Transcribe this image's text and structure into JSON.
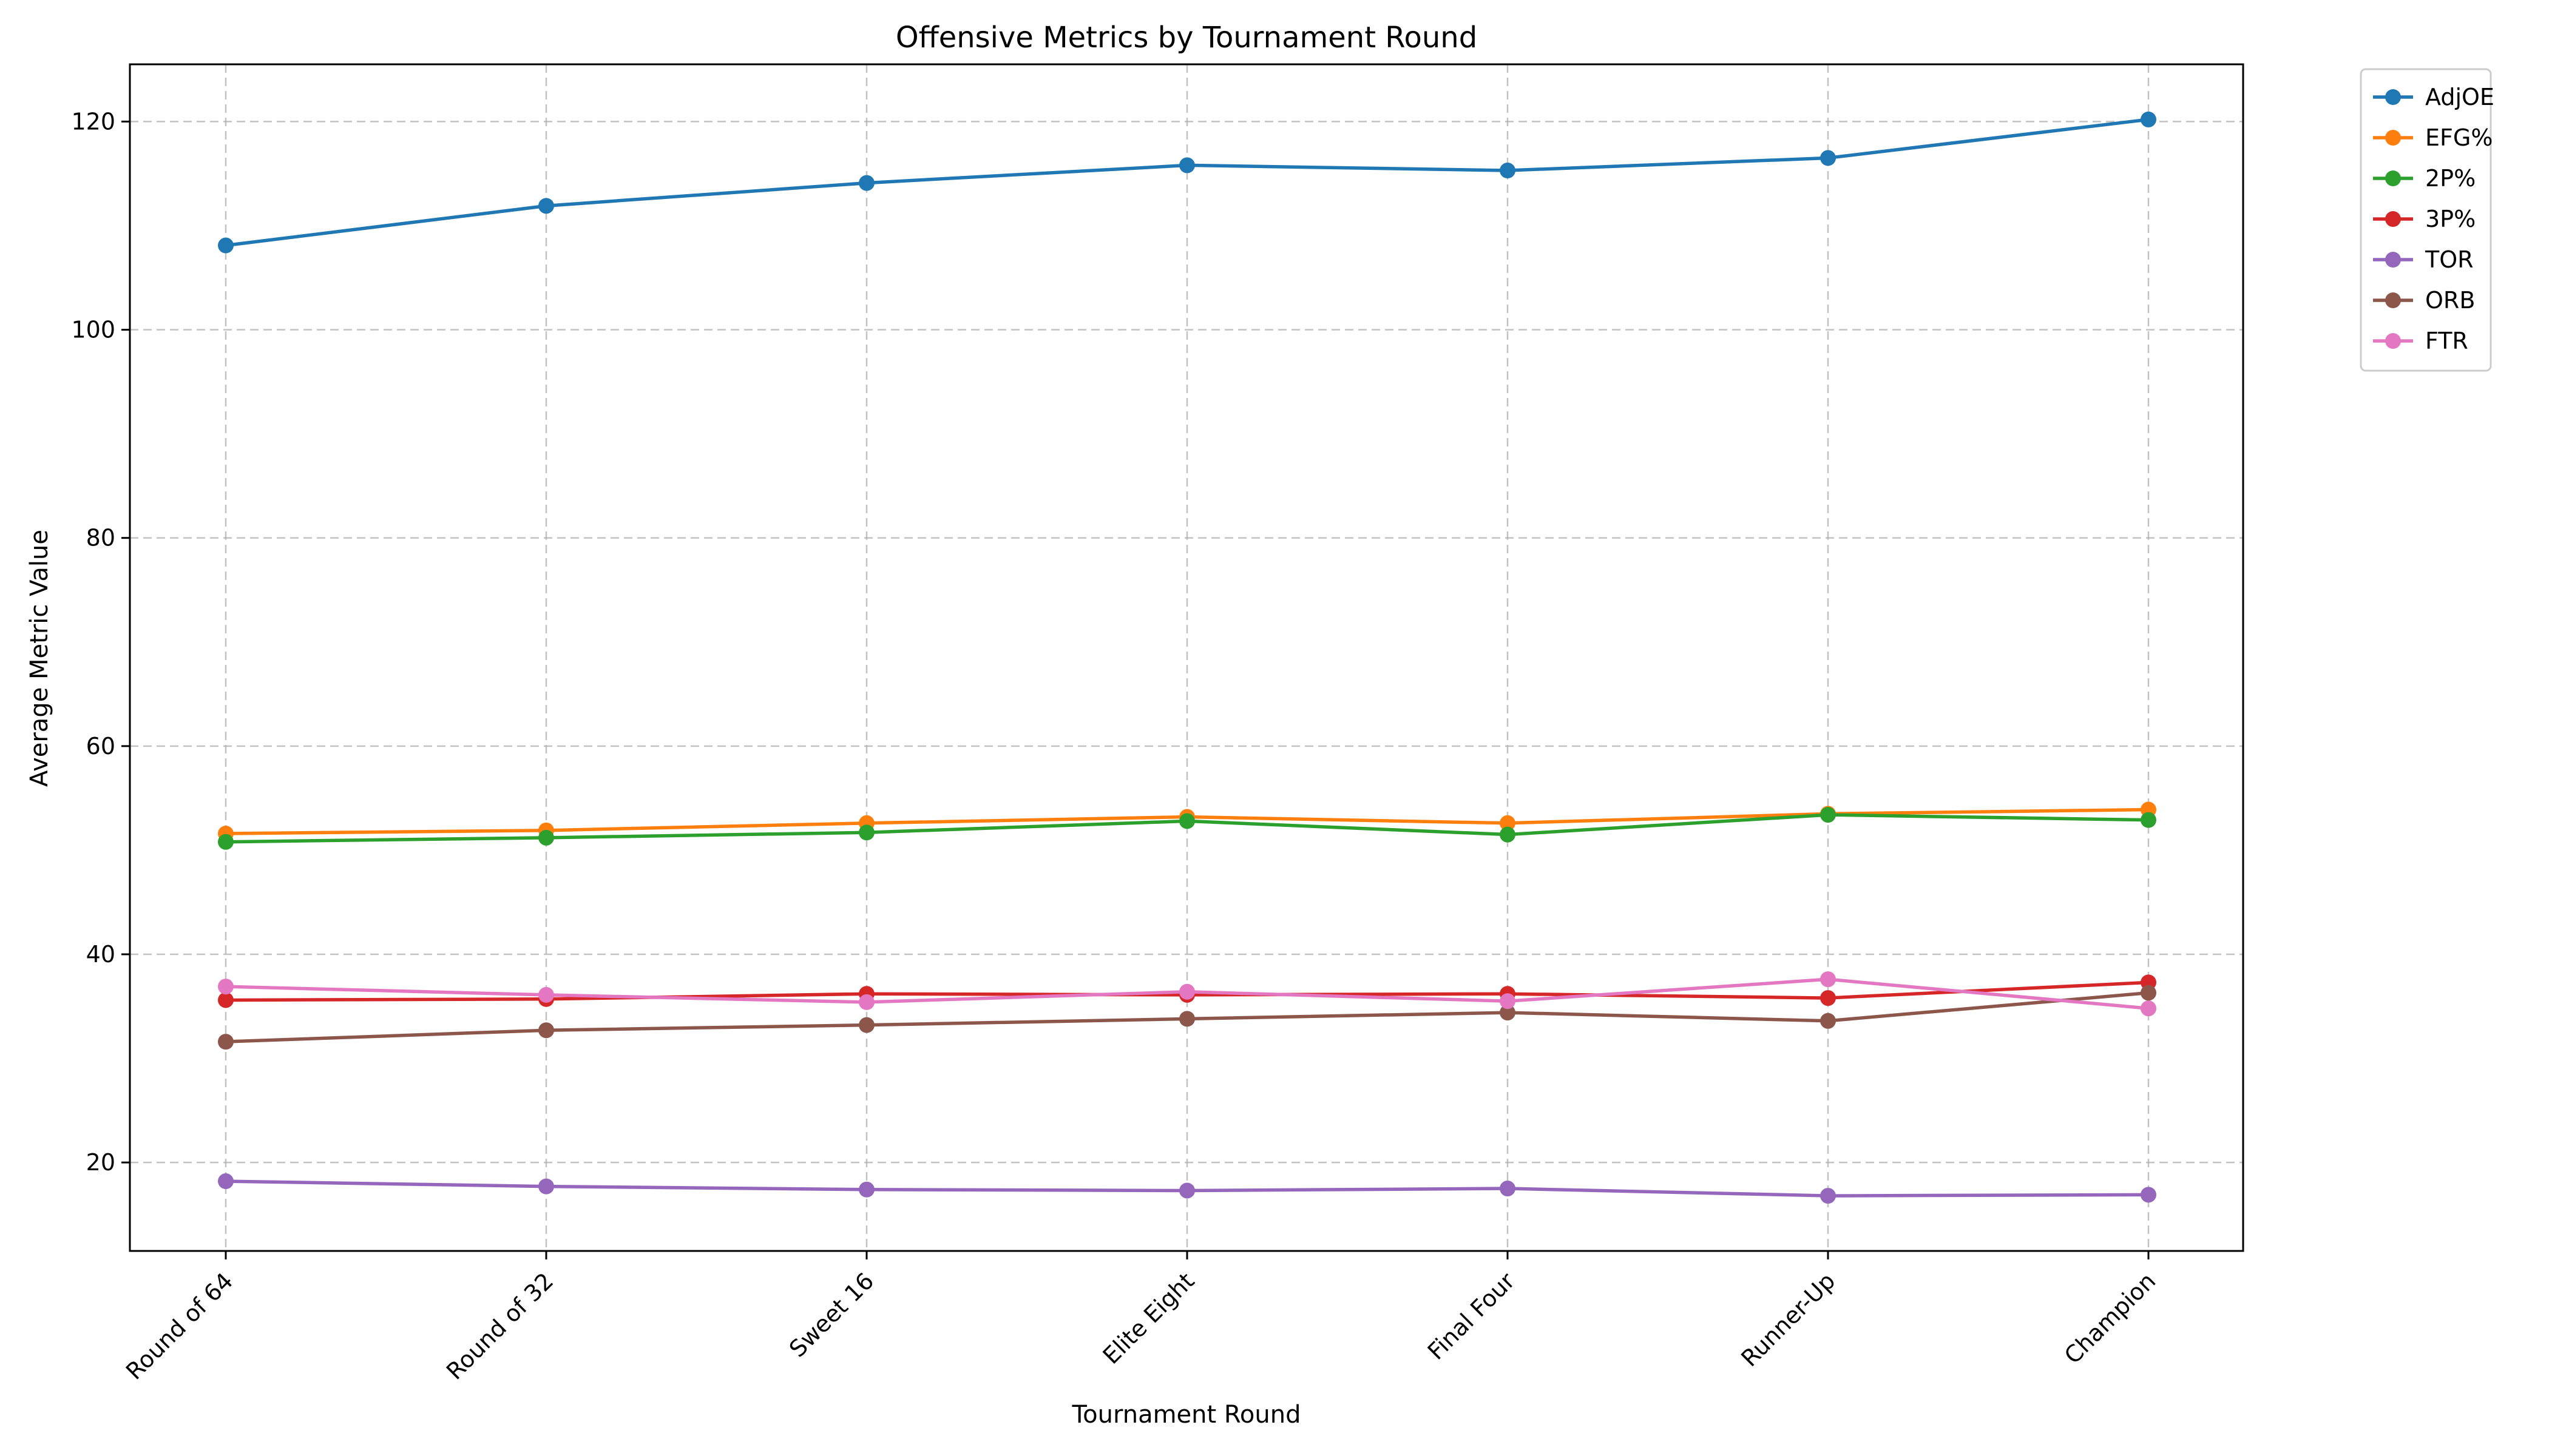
{
  "chart_data": {
    "type": "line",
    "title": "Offensive Metrics by Tournament Round",
    "xlabel": "Tournament Round",
    "ylabel": "Average Metric Value",
    "categories": [
      "Round of 64",
      "Round of 32",
      "Sweet 16",
      "Elite Eight",
      "Final Four",
      "Runner-Up",
      "Champion"
    ],
    "ylim": [
      11.5,
      125.5
    ],
    "yticks": [
      20,
      40,
      60,
      80,
      100,
      120
    ],
    "grid": true,
    "legend_position": "outside top-right",
    "marker": "circle",
    "series": [
      {
        "name": "AdjOE",
        "color": "#1f77b4",
        "values": [
          108.1,
          111.9,
          114.1,
          115.8,
          115.3,
          116.5,
          120.2
        ]
      },
      {
        "name": "EFG%",
        "color": "#ff7f0e",
        "values": [
          51.6,
          51.9,
          52.6,
          53.2,
          52.6,
          53.5,
          53.9
        ]
      },
      {
        "name": "2P%",
        "color": "#2ca02c",
        "values": [
          50.8,
          51.2,
          51.7,
          52.8,
          51.5,
          53.4,
          52.9
        ]
      },
      {
        "name": "3P%",
        "color": "#d62728",
        "values": [
          35.6,
          35.7,
          36.2,
          36.1,
          36.2,
          35.8,
          37.3
        ]
      },
      {
        "name": "TOR",
        "color": "#9467bd",
        "values": [
          18.2,
          17.7,
          17.4,
          17.3,
          17.5,
          16.8,
          16.9
        ]
      },
      {
        "name": "ORB",
        "color": "#8c564b",
        "values": [
          31.6,
          32.7,
          33.2,
          33.8,
          34.4,
          33.6,
          36.3
        ]
      },
      {
        "name": "FTR",
        "color": "#e377c2",
        "values": [
          36.9,
          36.1,
          35.4,
          36.4,
          35.5,
          37.6,
          34.8
        ]
      }
    ]
  }
}
